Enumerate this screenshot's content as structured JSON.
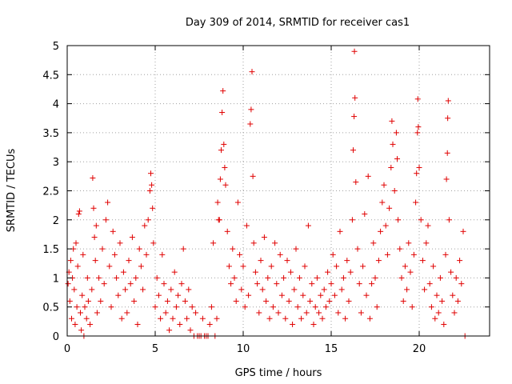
{
  "chart_data": {
    "type": "scatter",
    "title": "Day 309 of 2014, SRMTID for receiver cas1",
    "xlabel": "GPS time / hours",
    "ylabel": "SRMTID / TECUs",
    "xlim": [
      0,
      24
    ],
    "ylim": [
      0,
      5
    ],
    "xticks": [
      0,
      5,
      10,
      15,
      20
    ],
    "yticks": [
      0,
      0.5,
      1,
      1.5,
      2,
      2.5,
      3,
      3.5,
      4,
      4.5,
      5
    ],
    "xtick_labels": [
      "0",
      "5",
      "10",
      "15",
      "20"
    ],
    "ytick_labels": [
      "0",
      "0.5",
      "1",
      "1.5",
      "2",
      "2.5",
      "3",
      "3.5",
      "4",
      "4.5",
      "5"
    ],
    "grid": true,
    "marker": "+",
    "color": "#e00000",
    "series": [
      {
        "name": "SRMTID",
        "points": [
          [
            0.05,
            0.9
          ],
          [
            0.1,
            1.1
          ],
          [
            0.15,
            0.6
          ],
          [
            0.2,
            1.3
          ],
          [
            0.25,
            0.3
          ],
          [
            0.3,
            1.0
          ],
          [
            0.35,
            1.5
          ],
          [
            0.4,
            0.8
          ],
          [
            0.45,
            0.2
          ],
          [
            0.5,
            1.6
          ],
          [
            0.55,
            0.5
          ],
          [
            0.6,
            1.2
          ],
          [
            0.65,
            2.1
          ],
          [
            0.7,
            2.15
          ],
          [
            0.75,
            0.4
          ],
          [
            0.8,
            0.1
          ],
          [
            0.85,
            0.7
          ],
          [
            0.9,
            1.4
          ],
          [
            0.95,
            0.0
          ],
          [
            1.0,
            0.5
          ],
          [
            1.1,
            0.3
          ],
          [
            1.15,
            1.0
          ],
          [
            1.2,
            0.6
          ],
          [
            1.3,
            0.2
          ],
          [
            1.4,
            0.8
          ],
          [
            1.45,
            2.72
          ],
          [
            1.5,
            2.2
          ],
          [
            1.55,
            1.7
          ],
          [
            1.6,
            1.3
          ],
          [
            1.65,
            1.9
          ],
          [
            1.7,
            0.4
          ],
          [
            1.8,
            1.0
          ],
          [
            1.9,
            0.6
          ],
          [
            2.0,
            1.5
          ],
          [
            2.1,
            0.9
          ],
          [
            2.2,
            2.0
          ],
          [
            2.3,
            2.3
          ],
          [
            2.4,
            1.2
          ],
          [
            2.5,
            0.5
          ],
          [
            2.6,
            1.8
          ],
          [
            2.7,
            1.4
          ],
          [
            2.8,
            1.0
          ],
          [
            2.9,
            0.7
          ],
          [
            3.0,
            1.6
          ],
          [
            3.1,
            0.3
          ],
          [
            3.2,
            1.1
          ],
          [
            3.3,
            0.8
          ],
          [
            3.4,
            0.4
          ],
          [
            3.5,
            1.3
          ],
          [
            3.6,
            0.9
          ],
          [
            3.7,
            1.7
          ],
          [
            3.8,
            0.6
          ],
          [
            3.9,
            1.0
          ],
          [
            4.0,
            0.2
          ],
          [
            4.1,
            1.5
          ],
          [
            4.2,
            1.2
          ],
          [
            4.3,
            0.8
          ],
          [
            4.4,
            1.9
          ],
          [
            4.5,
            1.4
          ],
          [
            4.6,
            2.0
          ],
          [
            4.7,
            2.5
          ],
          [
            4.75,
            2.8
          ],
          [
            4.8,
            2.6
          ],
          [
            4.85,
            2.2
          ],
          [
            4.9,
            1.6
          ],
          [
            5.0,
            0.5
          ],
          [
            5.1,
            1.0
          ],
          [
            5.2,
            0.7
          ],
          [
            5.3,
            0.3
          ],
          [
            5.4,
            1.4
          ],
          [
            5.5,
            0.9
          ],
          [
            5.6,
            0.4
          ],
          [
            5.7,
            0.6
          ],
          [
            5.8,
            0.1
          ],
          [
            5.9,
            0.8
          ],
          [
            6.0,
            0.3
          ],
          [
            6.1,
            1.1
          ],
          [
            6.2,
            0.5
          ],
          [
            6.3,
            0.7
          ],
          [
            6.4,
            0.2
          ],
          [
            6.5,
            0.9
          ],
          [
            6.6,
            1.5
          ],
          [
            6.7,
            0.6
          ],
          [
            6.8,
            0.3
          ],
          [
            6.9,
            0.8
          ],
          [
            7.0,
            0.1
          ],
          [
            7.1,
            0.5
          ],
          [
            7.2,
            0.0
          ],
          [
            7.3,
            0.4
          ],
          [
            7.4,
            0.0
          ],
          [
            7.5,
            0.0
          ],
          [
            7.6,
            0.0
          ],
          [
            7.7,
            0.3
          ],
          [
            7.8,
            0.0
          ],
          [
            7.9,
            0.0
          ],
          [
            8.0,
            0.0
          ],
          [
            8.1,
            0.2
          ],
          [
            8.2,
            0.5
          ],
          [
            8.3,
            1.6
          ],
          [
            8.4,
            0.0
          ],
          [
            8.5,
            0.3
          ],
          [
            8.55,
            2.3
          ],
          [
            8.6,
            2.0
          ],
          [
            8.65,
            2.0
          ],
          [
            8.7,
            2.7
          ],
          [
            8.75,
            3.2
          ],
          [
            8.8,
            3.85
          ],
          [
            8.85,
            4.22
          ],
          [
            8.9,
            3.3
          ],
          [
            8.95,
            2.9
          ],
          [
            9.0,
            2.6
          ],
          [
            9.1,
            1.8
          ],
          [
            9.2,
            1.2
          ],
          [
            9.3,
            0.9
          ],
          [
            9.4,
            1.5
          ],
          [
            9.5,
            1.0
          ],
          [
            9.6,
            0.6
          ],
          [
            9.7,
            2.3
          ],
          [
            9.8,
            1.4
          ],
          [
            9.9,
            0.8
          ],
          [
            10.0,
            1.2
          ],
          [
            10.1,
            0.5
          ],
          [
            10.2,
            1.9
          ],
          [
            10.3,
            0.7
          ],
          [
            10.4,
            3.65
          ],
          [
            10.45,
            3.9
          ],
          [
            10.5,
            4.55
          ],
          [
            10.55,
            2.75
          ],
          [
            10.6,
            1.6
          ],
          [
            10.7,
            1.1
          ],
          [
            10.8,
            0.9
          ],
          [
            10.9,
            0.4
          ],
          [
            11.0,
            1.3
          ],
          [
            11.1,
            0.8
          ],
          [
            11.2,
            1.7
          ],
          [
            11.3,
            0.6
          ],
          [
            11.4,
            1.0
          ],
          [
            11.5,
            0.3
          ],
          [
            11.6,
            1.2
          ],
          [
            11.7,
            0.5
          ],
          [
            11.8,
            1.6
          ],
          [
            11.9,
            0.9
          ],
          [
            12.0,
            0.4
          ],
          [
            12.1,
            1.4
          ],
          [
            12.2,
            0.7
          ],
          [
            12.3,
            1.0
          ],
          [
            12.4,
            0.3
          ],
          [
            12.5,
            1.3
          ],
          [
            12.6,
            0.6
          ],
          [
            12.7,
            1.1
          ],
          [
            12.8,
            0.2
          ],
          [
            12.9,
            0.8
          ],
          [
            13.0,
            1.5
          ],
          [
            13.1,
            0.5
          ],
          [
            13.2,
            1.0
          ],
          [
            13.3,
            0.3
          ],
          [
            13.4,
            0.7
          ],
          [
            13.5,
            1.2
          ],
          [
            13.6,
            0.4
          ],
          [
            13.7,
            1.9
          ],
          [
            13.8,
            0.6
          ],
          [
            13.9,
            0.9
          ],
          [
            14.0,
            0.2
          ],
          [
            14.1,
            0.5
          ],
          [
            14.2,
            1.0
          ],
          [
            14.3,
            0.4
          ],
          [
            14.4,
            0.7
          ],
          [
            14.5,
            0.3
          ],
          [
            14.6,
            0.8
          ],
          [
            14.7,
            0.5
          ],
          [
            14.8,
            1.1
          ],
          [
            14.9,
            0.6
          ],
          [
            15.0,
            0.9
          ],
          [
            15.1,
            1.4
          ],
          [
            15.2,
            0.7
          ],
          [
            15.3,
            1.2
          ],
          [
            15.4,
            0.4
          ],
          [
            15.5,
            1.8
          ],
          [
            15.6,
            0.8
          ],
          [
            15.7,
            1.0
          ],
          [
            15.8,
            0.3
          ],
          [
            15.9,
            1.3
          ],
          [
            16.0,
            0.6
          ],
          [
            16.1,
            1.1
          ],
          [
            16.2,
            2.0
          ],
          [
            16.25,
            3.2
          ],
          [
            16.3,
            3.78
          ],
          [
            16.32,
            4.9
          ],
          [
            16.35,
            4.1
          ],
          [
            16.4,
            2.65
          ],
          [
            16.5,
            1.5
          ],
          [
            16.6,
            0.9
          ],
          [
            16.7,
            0.4
          ],
          [
            16.8,
            1.2
          ],
          [
            16.9,
            2.1
          ],
          [
            17.0,
            0.7
          ],
          [
            17.1,
            2.75
          ],
          [
            17.2,
            0.3
          ],
          [
            17.3,
            0.9
          ],
          [
            17.4,
            1.6
          ],
          [
            17.5,
            1.0
          ],
          [
            17.6,
            0.5
          ],
          [
            17.7,
            1.3
          ],
          [
            17.8,
            1.8
          ],
          [
            17.9,
            2.3
          ],
          [
            18.0,
            2.6
          ],
          [
            18.1,
            1.9
          ],
          [
            18.2,
            1.4
          ],
          [
            18.3,
            2.2
          ],
          [
            18.4,
            2.9
          ],
          [
            18.45,
            3.7
          ],
          [
            18.5,
            3.3
          ],
          [
            18.6,
            2.5
          ],
          [
            18.7,
            3.5
          ],
          [
            18.75,
            3.05
          ],
          [
            18.8,
            2.0
          ],
          [
            18.9,
            1.5
          ],
          [
            19.0,
            1.0
          ],
          [
            19.1,
            0.6
          ],
          [
            19.2,
            1.2
          ],
          [
            19.3,
            0.8
          ],
          [
            19.4,
            1.6
          ],
          [
            19.5,
            1.1
          ],
          [
            19.6,
            0.5
          ],
          [
            19.7,
            1.4
          ],
          [
            19.8,
            2.3
          ],
          [
            19.85,
            2.8
          ],
          [
            19.9,
            3.5
          ],
          [
            19.92,
            4.08
          ],
          [
            19.95,
            3.6
          ],
          [
            20.0,
            2.9
          ],
          [
            20.1,
            2.0
          ],
          [
            20.2,
            1.3
          ],
          [
            20.3,
            0.8
          ],
          [
            20.4,
            1.6
          ],
          [
            20.5,
            1.9
          ],
          [
            20.6,
            0.9
          ],
          [
            20.7,
            0.5
          ],
          [
            20.8,
            1.2
          ],
          [
            20.9,
            0.3
          ],
          [
            21.0,
            0.7
          ],
          [
            21.1,
            0.4
          ],
          [
            21.2,
            1.0
          ],
          [
            21.3,
            0.6
          ],
          [
            21.4,
            0.2
          ],
          [
            21.5,
            1.4
          ],
          [
            21.55,
            2.7
          ],
          [
            21.6,
            3.15
          ],
          [
            21.62,
            3.75
          ],
          [
            21.65,
            4.05
          ],
          [
            21.7,
            2.0
          ],
          [
            21.8,
            1.1
          ],
          [
            21.9,
            0.7
          ],
          [
            22.0,
            0.4
          ],
          [
            22.1,
            1.0
          ],
          [
            22.2,
            0.6
          ],
          [
            22.3,
            1.3
          ],
          [
            22.4,
            0.9
          ],
          [
            22.5,
            1.8
          ],
          [
            22.6,
            0.0
          ]
        ]
      }
    ]
  }
}
